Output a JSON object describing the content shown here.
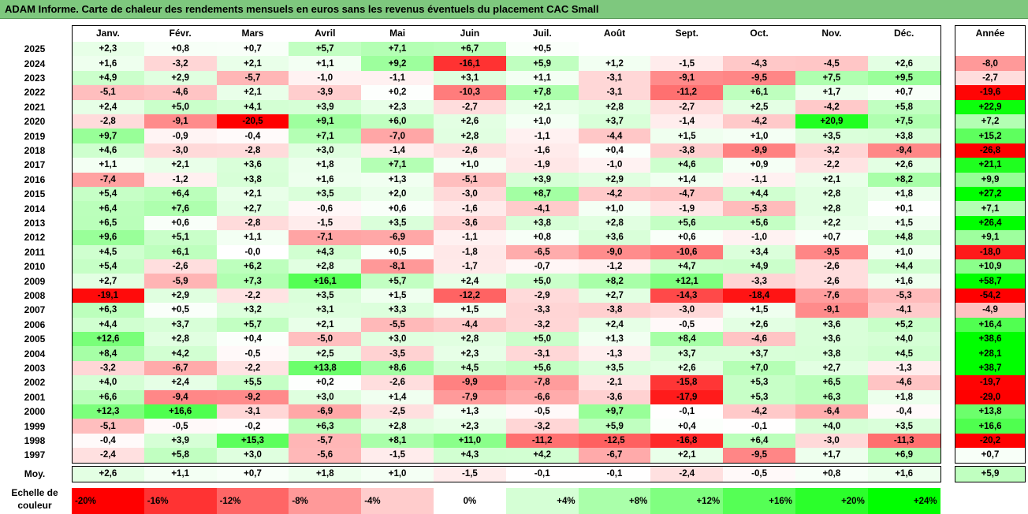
{
  "title": "ADAM Informe. Carte de chaleur des rendements mensuels en euros sans les revenus éventuels du placement CAC Small",
  "chart_data": {
    "type": "heatmap",
    "columns": [
      "Janv.",
      "Févr.",
      "Mars",
      "Avril",
      "Mai",
      "Juin",
      "Juil.",
      "Août",
      "Sept.",
      "Oct.",
      "Nov.",
      "Déc."
    ],
    "year_column": "Année",
    "rows": [
      {
        "year": "2025",
        "values": [
          "+2,3",
          "+0,8",
          "+0,7",
          "+5,7",
          "+7,1",
          "+6,7",
          "+0,5",
          "",
          "",
          "",
          "",
          ""
        ],
        "annual": ""
      },
      {
        "year": "2024",
        "values": [
          "+1,6",
          "-3,2",
          "+2,1",
          "+1,1",
          "+9,2",
          "-16,1",
          "+5,9",
          "+1,2",
          "-1,5",
          "-4,3",
          "-4,5",
          "+2,6"
        ],
        "annual": "-8,0"
      },
      {
        "year": "2023",
        "values": [
          "+4,9",
          "+2,9",
          "-5,7",
          "-1,0",
          "-1,1",
          "+3,1",
          "+1,1",
          "-3,1",
          "-9,1",
          "-9,5",
          "+7,5",
          "+9,5"
        ],
        "annual": "-2,7"
      },
      {
        "year": "2022",
        "values": [
          "-5,1",
          "-4,6",
          "+2,1",
          "-3,9",
          "+0,2",
          "-10,3",
          "+7,8",
          "-3,1",
          "-11,2",
          "+6,1",
          "+1,7",
          "+0,7"
        ],
        "annual": "-19,6"
      },
      {
        "year": "2021",
        "values": [
          "+2,4",
          "+5,0",
          "+4,1",
          "+3,9",
          "+2,3",
          "-2,7",
          "+2,1",
          "+2,8",
          "-2,7",
          "+2,5",
          "-4,2",
          "+5,8"
        ],
        "annual": "+22,9"
      },
      {
        "year": "2020",
        "values": [
          "-2,8",
          "-9,1",
          "-20,5",
          "+9,1",
          "+6,0",
          "+2,6",
          "+1,0",
          "+3,7",
          "-1,4",
          "-4,2",
          "+20,9",
          "+7,5"
        ],
        "annual": "+7,2"
      },
      {
        "year": "2019",
        "values": [
          "+9,7",
          "-0,9",
          "-0,4",
          "+7,1",
          "-7,0",
          "+2,8",
          "-1,1",
          "-4,4",
          "+1,5",
          "+1,0",
          "+3,5",
          "+3,8"
        ],
        "annual": "+15,2"
      },
      {
        "year": "2018",
        "values": [
          "+4,6",
          "-3,0",
          "-2,8",
          "+3,0",
          "-1,4",
          "-2,6",
          "-1,6",
          "+0,4",
          "-3,8",
          "-9,9",
          "-3,2",
          "-9,4"
        ],
        "annual": "-26,8"
      },
      {
        "year": "2017",
        "values": [
          "+1,1",
          "+2,1",
          "+3,6",
          "+1,8",
          "+7,1",
          "+1,0",
          "-1,9",
          "-1,0",
          "+4,6",
          "+0,9",
          "-2,2",
          "+2,6"
        ],
        "annual": "+21,1"
      },
      {
        "year": "2016",
        "values": [
          "-7,4",
          "-1,2",
          "+3,8",
          "+1,6",
          "+1,3",
          "-5,1",
          "+3,9",
          "+2,9",
          "+1,4",
          "-1,1",
          "+2,1",
          "+8,2"
        ],
        "annual": "+9,9"
      },
      {
        "year": "2015",
        "values": [
          "+5,4",
          "+6,4",
          "+2,1",
          "+3,5",
          "+2,0",
          "-3,0",
          "+8,7",
          "-4,2",
          "-4,7",
          "+4,4",
          "+2,8",
          "+1,8"
        ],
        "annual": "+27,2"
      },
      {
        "year": "2014",
        "values": [
          "+6,4",
          "+7,6",
          "+2,7",
          "-0,6",
          "+0,6",
          "-1,6",
          "-4,1",
          "+1,0",
          "-1,9",
          "-5,3",
          "+2,8",
          "+0,1"
        ],
        "annual": "+7,1"
      },
      {
        "year": "2013",
        "values": [
          "+6,5",
          "+0,6",
          "-2,8",
          "-1,5",
          "+3,5",
          "-3,6",
          "+3,8",
          "+2,8",
          "+5,6",
          "+5,6",
          "+2,2",
          "+1,5"
        ],
        "annual": "+26,4"
      },
      {
        "year": "2012",
        "values": [
          "+9,6",
          "+5,1",
          "+1,1",
          "-7,1",
          "-6,9",
          "-1,1",
          "+0,8",
          "+3,6",
          "+0,6",
          "-1,0",
          "+0,7",
          "+4,8"
        ],
        "annual": "+9,1"
      },
      {
        "year": "2011",
        "values": [
          "+4,5",
          "+6,1",
          "-0,0",
          "+4,3",
          "+0,5",
          "-1,8",
          "-6,5",
          "-9,0",
          "-10,6",
          "+3,4",
          "-9,5",
          "+1,0"
        ],
        "annual": "-18,0"
      },
      {
        "year": "2010",
        "values": [
          "+5,4",
          "-2,6",
          "+6,2",
          "+2,8",
          "-8,1",
          "-1,7",
          "-0,7",
          "-1,2",
          "+4,7",
          "+4,9",
          "-2,6",
          "+4,4"
        ],
        "annual": "+10,9"
      },
      {
        "year": "2009",
        "values": [
          "+2,7",
          "-5,9",
          "+7,3",
          "+16,1",
          "+5,7",
          "+2,4",
          "+5,0",
          "+8,2",
          "+12,1",
          "-3,3",
          "-2,6",
          "+1,6"
        ],
        "annual": "+58,7"
      },
      {
        "year": "2008",
        "values": [
          "-19,1",
          "+2,9",
          "-2,2",
          "+3,5",
          "+1,5",
          "-12,2",
          "-2,9",
          "+2,7",
          "-14,3",
          "-18,4",
          "-7,6",
          "-5,3"
        ],
        "annual": "-54,2"
      },
      {
        "year": "2007",
        "values": [
          "+6,3",
          "+0,5",
          "+3,2",
          "+3,1",
          "+3,3",
          "+1,5",
          "-3,3",
          "-3,8",
          "-3,0",
          "+1,5",
          "-9,1",
          "-4,1"
        ],
        "annual": "-4,9"
      },
      {
        "year": "2006",
        "values": [
          "+4,4",
          "+3,7",
          "+5,7",
          "+2,1",
          "-5,5",
          "-4,4",
          "-3,2",
          "+2,4",
          "-0,5",
          "+2,6",
          "+3,6",
          "+5,2"
        ],
        "annual": "+16,4"
      },
      {
        "year": "2005",
        "values": [
          "+12,6",
          "+2,8",
          "+0,4",
          "-5,0",
          "+3,0",
          "+2,8",
          "+5,0",
          "+1,3",
          "+8,4",
          "-4,6",
          "+3,6",
          "+4,0"
        ],
        "annual": "+38,6"
      },
      {
        "year": "2004",
        "values": [
          "+8,4",
          "+4,2",
          "-0,5",
          "+2,5",
          "-3,5",
          "+2,3",
          "-3,1",
          "-1,3",
          "+3,7",
          "+3,7",
          "+3,8",
          "+4,5"
        ],
        "annual": "+28,1"
      },
      {
        "year": "2003",
        "values": [
          "-3,2",
          "-6,7",
          "-2,2",
          "+13,8",
          "+8,6",
          "+4,5",
          "+5,6",
          "+3,5",
          "+2,6",
          "+7,0",
          "+2,7",
          "-1,3"
        ],
        "annual": "+38,7"
      },
      {
        "year": "2002",
        "values": [
          "+4,0",
          "+2,4",
          "+5,5",
          "+0,2",
          "-2,6",
          "-9,9",
          "-7,8",
          "-2,1",
          "-15,8",
          "+5,3",
          "+6,5",
          "-4,6"
        ],
        "annual": "-19,7"
      },
      {
        "year": "2001",
        "values": [
          "+6,6",
          "-9,4",
          "-9,2",
          "+3,0",
          "+1,4",
          "-7,9",
          "-6,6",
          "-3,6",
          "-17,9",
          "+5,3",
          "+6,3",
          "+1,8"
        ],
        "annual": "-29,0"
      },
      {
        "year": "2000",
        "values": [
          "+12,3",
          "+16,6",
          "-3,1",
          "-6,9",
          "-2,5",
          "+1,3",
          "-0,5",
          "+9,7",
          "-0,1",
          "-4,2",
          "-6,4",
          "-0,4"
        ],
        "annual": "+13,8"
      },
      {
        "year": "1999",
        "values": [
          "-5,1",
          "-0,5",
          "-0,2",
          "+6,3",
          "+2,8",
          "+2,3",
          "-3,2",
          "+5,9",
          "+0,4",
          "-0,1",
          "+4,0",
          "+3,5"
        ],
        "annual": "+16,6"
      },
      {
        "year": "1998",
        "values": [
          "-0,4",
          "+3,9",
          "+15,3",
          "-5,7",
          "+8,1",
          "+11,0",
          "-11,2",
          "-12,5",
          "-16,8",
          "+6,4",
          "-3,0",
          "-11,3"
        ],
        "annual": "-20,2"
      },
      {
        "year": "1997",
        "values": [
          "-2,4",
          "+5,8",
          "+3,0",
          "-5,6",
          "-1,5",
          "+4,3",
          "+4,2",
          "-6,7",
          "+2,1",
          "-9,5",
          "+1,7",
          "+6,9"
        ],
        "annual": "+0,7"
      }
    ],
    "average": {
      "label": "Moy.",
      "values": [
        "+2,6",
        "+1,1",
        "+0,7",
        "+1,8",
        "+1,0",
        "-1,5",
        "-0,1",
        "-0,1",
        "-2,4",
        "-0,5",
        "+0,8",
        "+1,6"
      ],
      "annual": "+5,9"
    },
    "scale": {
      "label": "Echelle de couleur",
      "labels": [
        "-20%",
        "-16%",
        "-12%",
        "-8%",
        "-4%",
        "0%",
        "+4%",
        "+8%",
        "+12%",
        "+16%",
        "+20%",
        "+24%"
      ],
      "values": [
        -20,
        -16,
        -12,
        -8,
        -4,
        0,
        4,
        8,
        12,
        16,
        20,
        24
      ]
    },
    "colors": {
      "negative": "#ff0000",
      "neutral": "#ffffff",
      "positive": "#00ff00",
      "title_bar": "#7ec87e"
    }
  }
}
